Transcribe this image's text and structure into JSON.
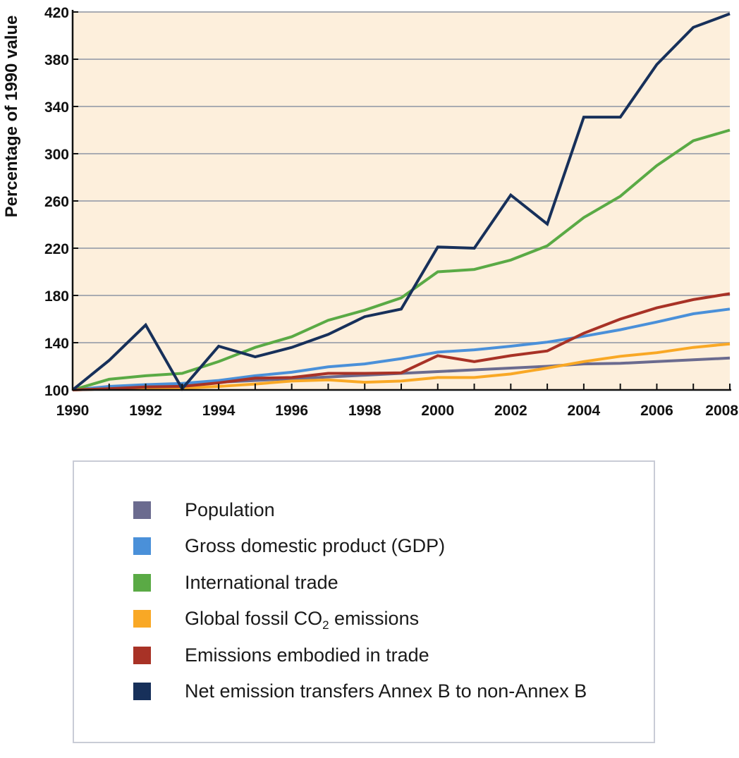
{
  "chart_data": {
    "type": "line",
    "title": "",
    "xlabel": "",
    "ylabel": "Percentage of 1990 value",
    "xlim": [
      1990,
      2008
    ],
    "ylim": [
      100,
      420
    ],
    "x_ticks": [
      "1990",
      "1992",
      "1994",
      "1996",
      "1998",
      "2000",
      "2002",
      "2004",
      "2006",
      "2008"
    ],
    "y_ticks": [
      "100",
      "140",
      "180",
      "220",
      "260",
      "300",
      "340",
      "380",
      "420"
    ],
    "grid": "horizontal",
    "background": "#fdefdc",
    "legend_placement": "bottom",
    "x": [
      1990,
      1991,
      1992,
      1993,
      1994,
      1995,
      1996,
      1997,
      1998,
      1999,
      2000,
      2001,
      2002,
      2003,
      2004,
      2005,
      2006,
      2007,
      2008
    ],
    "series": [
      {
        "name": "Population",
        "label_main": "Population",
        "label_sub": "",
        "label_tail": "",
        "color": "#6b6b8f",
        "values": [
          100,
          102,
          103.5,
          105,
          106.5,
          108,
          109.5,
          111,
          112.5,
          114,
          115.5,
          117,
          118.5,
          120,
          122,
          122.5,
          124,
          125.5,
          127
        ]
      },
      {
        "name": "Gross domestic product (GDP)",
        "label_main": "Gross domestic product (GDP)",
        "label_sub": "",
        "label_tail": "",
        "color": "#4a90d9",
        "values": [
          100,
          103,
          104.5,
          105.5,
          108,
          112,
          115,
          119.5,
          122,
          126.5,
          132,
          134,
          137,
          140.5,
          145.5,
          151,
          157.5,
          164.5,
          168.5
        ]
      },
      {
        "name": "International trade",
        "label_main": "International trade",
        "label_sub": "",
        "label_tail": "",
        "color": "#5aaa45",
        "values": [
          100,
          109,
          112,
          114,
          124,
          136,
          145,
          159,
          167.5,
          178,
          200,
          202,
          210,
          222,
          246,
          264,
          290,
          311,
          320
        ]
      },
      {
        "name": "Global fossil CO2 emissions",
        "label_main": "Global fossil CO",
        "label_sub": "2",
        "label_tail": " emissions",
        "color": "#f9a825",
        "values": [
          100,
          101,
          101.5,
          101.5,
          103,
          105,
          107.5,
          108.5,
          106.5,
          107.5,
          110.5,
          110.5,
          113.5,
          118.5,
          124,
          128.5,
          131.5,
          136,
          139
        ]
      },
      {
        "name": "Emissions embodied in trade",
        "label_main": "Emissions embodied in trade",
        "label_sub": "",
        "label_tail": "",
        "color": "#a83226",
        "values": [
          100,
          101,
          102.5,
          103,
          106,
          110,
          110.5,
          114,
          114,
          114.5,
          129,
          124,
          129,
          133,
          148,
          160,
          169.5,
          176.5,
          181.5
        ]
      },
      {
        "name": "Net emission transfers Annex B to non-Annex B",
        "label_main": "Net emission transfers Annex B to non-Annex B",
        "label_sub": "",
        "label_tail": "",
        "color": "#17305a",
        "values": [
          100,
          125,
          155,
          101,
          137,
          128,
          136,
          147,
          162,
          168.5,
          221,
          220,
          265,
          240.5,
          331,
          331,
          375.5,
          407,
          418.5
        ]
      }
    ]
  }
}
